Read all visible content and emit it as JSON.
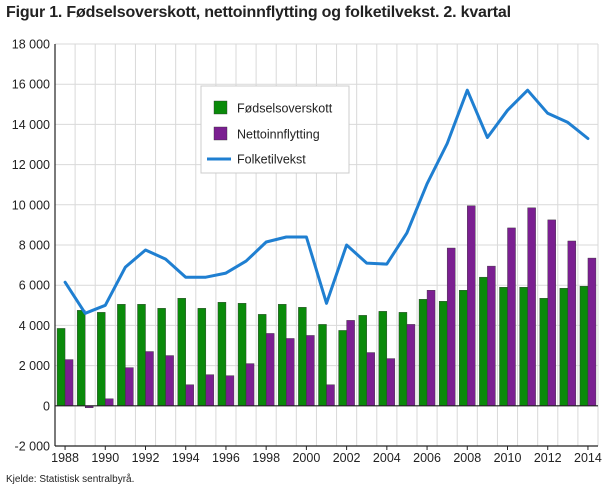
{
  "page": {
    "title": "Figur 1. Fødselsoverskott, nettoinnflytting og folketilvekst. 2. kvartal",
    "source": "Kjelde: Statistisk sentralbyrå."
  },
  "colors": {
    "births": "#0a8a0a",
    "migration": "#7b1f91",
    "growth": "#1f7fd1",
    "grid": "#d9d9d9",
    "axis": "#222222"
  },
  "chart_data": {
    "type": "bar",
    "title": "Figur 1. Fødselsoverskott, nettoinnflytting og folketilvekst. 2. kvartal",
    "xlabel": "",
    "ylabel": "",
    "ylim": [
      -2000,
      18000
    ],
    "yticks": [
      -2000,
      0,
      2000,
      4000,
      6000,
      8000,
      10000,
      12000,
      14000,
      16000,
      18000
    ],
    "ytick_labels": [
      "-2 000",
      "0",
      "2 000",
      "4 000",
      "6 000",
      "8 000",
      "10 000",
      "12 000",
      "14 000",
      "16 000",
      "18 000"
    ],
    "x": [
      1988,
      1989,
      1990,
      1991,
      1992,
      1993,
      1994,
      1995,
      1996,
      1997,
      1998,
      1999,
      2000,
      2001,
      2002,
      2003,
      2004,
      2005,
      2006,
      2007,
      2008,
      2009,
      2010,
      2011,
      2012,
      2013,
      2014
    ],
    "xtick_labels": [
      "1988",
      "1990",
      "1992",
      "1994",
      "1996",
      "1998",
      "2000",
      "2002",
      "2004",
      "2006",
      "2008",
      "2010",
      "2012",
      "2014"
    ],
    "grid": true,
    "legend": "inside-top-left",
    "series": [
      {
        "name": "Fødselsoverskott",
        "kind": "bar",
        "values": [
          3850,
          4750,
          4650,
          5050,
          5050,
          4850,
          5350,
          4850,
          5150,
          5100,
          4550,
          5050,
          4900,
          4050,
          3750,
          4500,
          4700,
          4650,
          5300,
          5200,
          5750,
          6400,
          5900,
          5900,
          5350,
          5850,
          5950
        ]
      },
      {
        "name": "Nettoinnflytting",
        "kind": "bar",
        "values": [
          2300,
          -100,
          350,
          1900,
          2700,
          2500,
          1050,
          1550,
          1500,
          2100,
          3600,
          3350,
          3500,
          1050,
          4250,
          2650,
          2350,
          4050,
          5750,
          7850,
          9950,
          6950,
          8850,
          9850,
          9250,
          8200,
          7350
        ]
      },
      {
        "name": "Folketilvekst",
        "kind": "line",
        "values": [
          6150,
          4600,
          5000,
          6900,
          7750,
          7300,
          6400,
          6400,
          6600,
          7200,
          8150,
          8400,
          8400,
          5100,
          8000,
          7100,
          7050,
          8600,
          11050,
          13050,
          15700,
          13350,
          14700,
          15700,
          14550,
          14100,
          13300
        ]
      }
    ]
  }
}
